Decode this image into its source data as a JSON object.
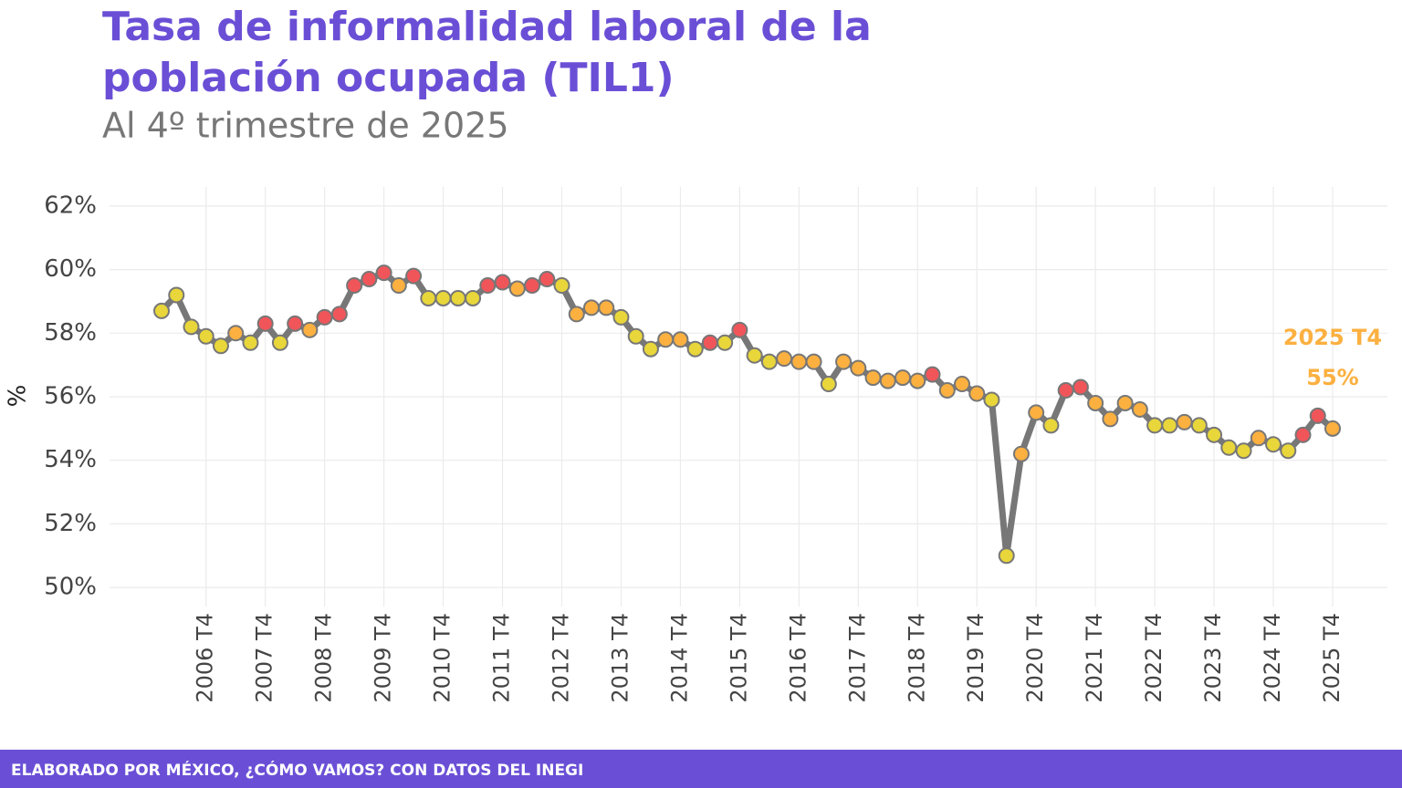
{
  "chart_data": {
    "type": "line",
    "title": [
      "Tasa de informalidad laboral de la",
      "población ocupada (TIL1)"
    ],
    "subtitle": "Al 4º trimestre de 2025",
    "y_label": "%",
    "footer": "ELABORADO POR MÉXICO, ¿CÓMO VAMOS? CON DATOS DEL INEGI",
    "annotation": [
      "2025 T4",
      "55%"
    ],
    "annotation_color": "#fbb040",
    "line_color": "#777777",
    "categories": [
      null,
      null,
      null,
      "2006 T4",
      null,
      null,
      null,
      "2007 T4",
      null,
      null,
      null,
      "2008 T4",
      null,
      null,
      null,
      "2009 T4",
      null,
      null,
      null,
      "2010 T4",
      null,
      null,
      null,
      "2011 T4",
      null,
      null,
      null,
      "2012 T4",
      null,
      null,
      null,
      "2013 T4",
      null,
      null,
      null,
      "2014 T4",
      null,
      null,
      null,
      "2015 T4",
      null,
      null,
      null,
      "2016 T4",
      null,
      null,
      null,
      "2017 T4",
      null,
      null,
      null,
      "2018 T4",
      null,
      null,
      null,
      "2019 T4",
      null,
      null,
      null,
      "2020 T4",
      null,
      null,
      null,
      "2021 T4",
      null,
      null,
      null,
      "2022 T4",
      null,
      null,
      null,
      "2023 T4",
      null,
      null,
      null,
      "2024 T4",
      null,
      null,
      null,
      "2025 T4"
    ],
    "values": [
      58.7,
      59.2,
      58.2,
      57.9,
      57.6,
      58.0,
      57.7,
      58.3,
      57.7,
      58.3,
      58.1,
      58.5,
      58.6,
      59.5,
      59.7,
      59.9,
      59.5,
      59.8,
      59.1,
      59.1,
      59.1,
      59.1,
      59.5,
      59.6,
      59.4,
      59.5,
      59.7,
      59.5,
      58.6,
      58.8,
      58.8,
      58.5,
      57.9,
      57.5,
      57.8,
      57.8,
      57.5,
      57.7,
      57.7,
      58.1,
      57.3,
      57.1,
      57.2,
      57.1,
      57.1,
      56.4,
      57.1,
      56.9,
      56.6,
      56.5,
      56.6,
      56.5,
      56.7,
      56.2,
      56.4,
      56.1,
      55.9,
      51.0,
      54.2,
      55.5,
      55.1,
      56.2,
      56.3,
      55.8,
      55.3,
      55.8,
      55.6,
      55.1,
      55.1,
      55.2,
      55.1,
      54.8,
      54.4,
      54.3,
      54.7,
      54.5,
      54.3,
      54.8,
      55.4,
      55.0
    ],
    "point_colors": [
      "#e8d63a",
      "#e8d63a",
      "#e8d63a",
      "#e8d63a",
      "#e8d63a",
      "#fbb040",
      "#e8d63a",
      "#f0555a",
      "#e8d63a",
      "#f0555a",
      "#fbb040",
      "#f0555a",
      "#f0555a",
      "#f0555a",
      "#f0555a",
      "#f0555a",
      "#fbb040",
      "#f0555a",
      "#e8d63a",
      "#e8d63a",
      "#e8d63a",
      "#e8d63a",
      "#f0555a",
      "#f0555a",
      "#fbb040",
      "#f0555a",
      "#f0555a",
      "#e8d63a",
      "#fbb040",
      "#fbb040",
      "#fbb040",
      "#e8d63a",
      "#e8d63a",
      "#e8d63a",
      "#fbb040",
      "#fbb040",
      "#e8d63a",
      "#f0555a",
      "#e8d63a",
      "#f0555a",
      "#e8d63a",
      "#e8d63a",
      "#fbb040",
      "#fbb040",
      "#fbb040",
      "#e8d63a",
      "#fbb040",
      "#fbb040",
      "#fbb040",
      "#fbb040",
      "#fbb040",
      "#fbb040",
      "#f0555a",
      "#fbb040",
      "#fbb040",
      "#fbb040",
      "#e8d63a",
      "#e8d63a",
      "#fbb040",
      "#fbb040",
      "#e8d63a",
      "#f0555a",
      "#f0555a",
      "#fbb040",
      "#fbb040",
      "#fbb040",
      "#fbb040",
      "#e8d63a",
      "#e8d63a",
      "#fbb040",
      "#e8d63a",
      "#e8d63a",
      "#e8d63a",
      "#e8d63a",
      "#fbb040",
      "#e8d63a",
      "#e8d63a",
      "#f0555a",
      "#f0555a",
      "#fbb040"
    ],
    "ylim": [
      49.4,
      62.6
    ],
    "yticks": [
      {
        "value": 50,
        "label": "50%"
      },
      {
        "value": 52,
        "label": "52%"
      },
      {
        "value": 54,
        "label": "54%"
      },
      {
        "value": 56,
        "label": "56%"
      },
      {
        "value": 58,
        "label": "58%"
      },
      {
        "value": 60,
        "label": "60%"
      },
      {
        "value": 62,
        "label": "62%"
      }
    ],
    "grid": true,
    "footer_color": "#6a4fd6"
  }
}
